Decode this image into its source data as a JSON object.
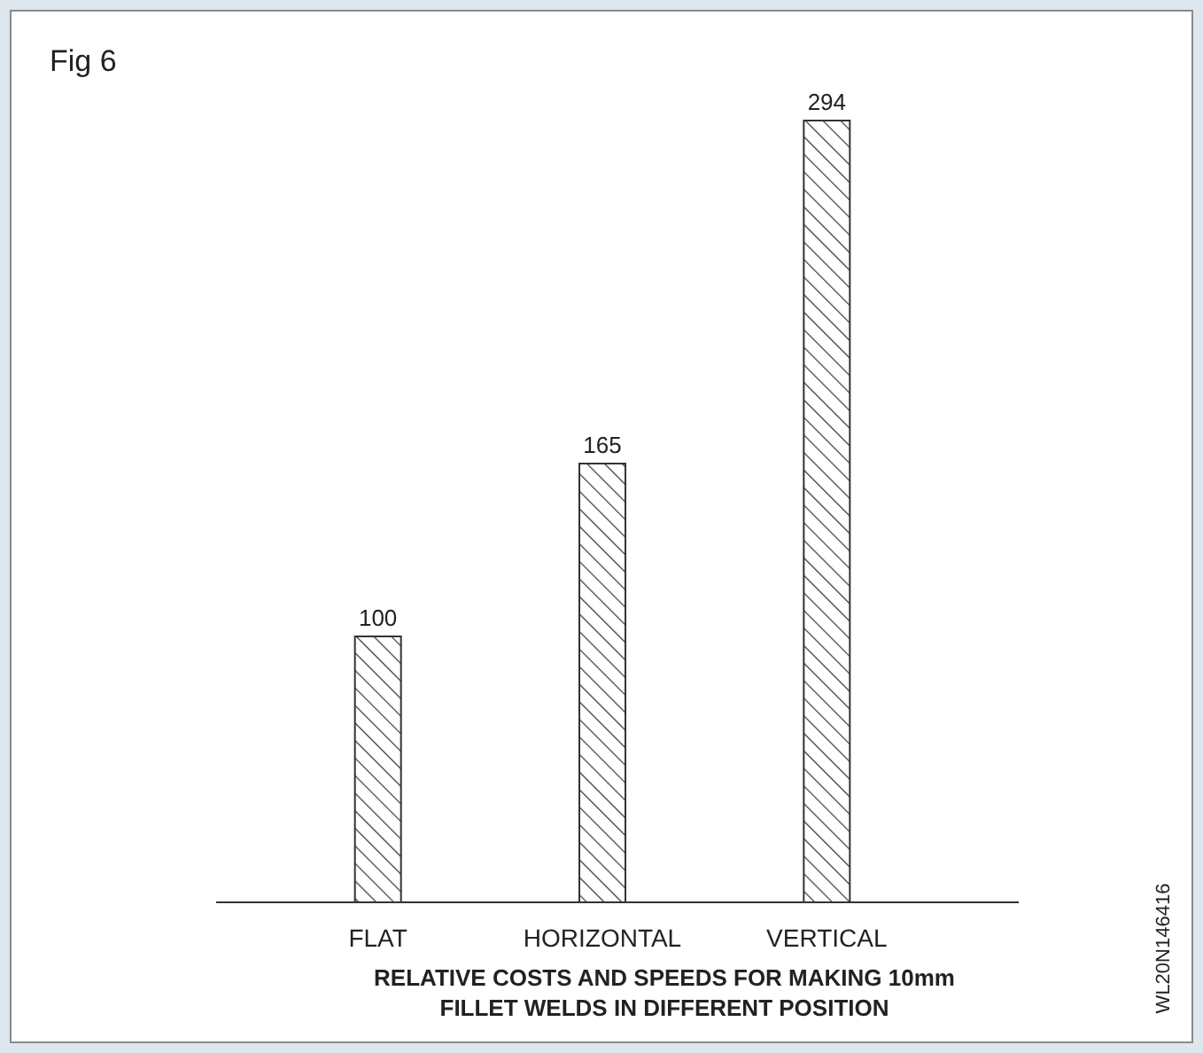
{
  "chart_data": {
    "type": "bar",
    "title": "Fig 6",
    "xlabel": "RELATIVE COSTS AND SPEEDS FOR MAKING 10mm FILLET WELDS IN DIFFERENT POSITION",
    "categories": [
      "FLAT",
      "HORIZONTAL",
      "VERTICAL"
    ],
    "values": [
      100,
      165,
      294
    ],
    "color": "#333333",
    "ylim": [
      0,
      294
    ],
    "data_labels": true,
    "annotations": [
      "WL20N146416"
    ]
  }
}
